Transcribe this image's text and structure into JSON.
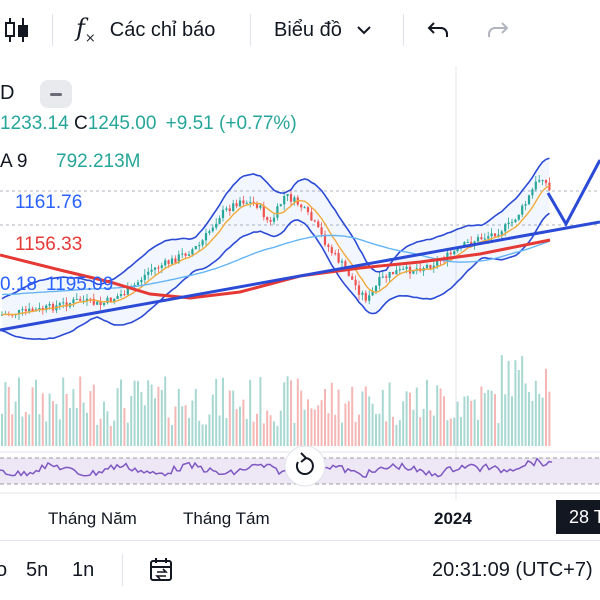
{
  "toolbar": {
    "candle_icon": "candlestick-icon",
    "indicators_icon": "fx-icon",
    "indicators_label": "Các chỉ báo",
    "chart_type_label": "Biểu đồ",
    "undo_icon": "undo-icon",
    "redo_icon": "redo-icon"
  },
  "symbol_fragment": "D",
  "ohlc": {
    "low_fragment": "1233.14",
    "close_key": "C",
    "close": "1245.00",
    "change": "+9.51",
    "change_pct": "(+0.77%)"
  },
  "volume": {
    "label_fragment": "A 9",
    "value": "792.213M"
  },
  "indicator_values": {
    "bb_upper": "1161.76",
    "ma_red": "1156.33",
    "ma_left_fragment": "0.18",
    "ma_blue": "1195.09"
  },
  "x_axis": {
    "labels": [
      "Tháng Năm",
      "Tháng Tám",
      "2024"
    ],
    "date_badge": "28 T"
  },
  "bottom_bar": {
    "timeframe_fragment": "o",
    "tf_5n": "5n",
    "tf_1n": "1n",
    "calendar_icon": "date-range-icon",
    "clock": "20:31:09 (UTC+7)"
  },
  "colors": {
    "up": "#26a69a",
    "down": "#ef5350",
    "trend_blue": "#2b4bd6",
    "bb_line": "#2962ff",
    "ma_red": "#e53935",
    "ma_orange": "#f2a93b",
    "rsi": "#7e57c2"
  }
}
